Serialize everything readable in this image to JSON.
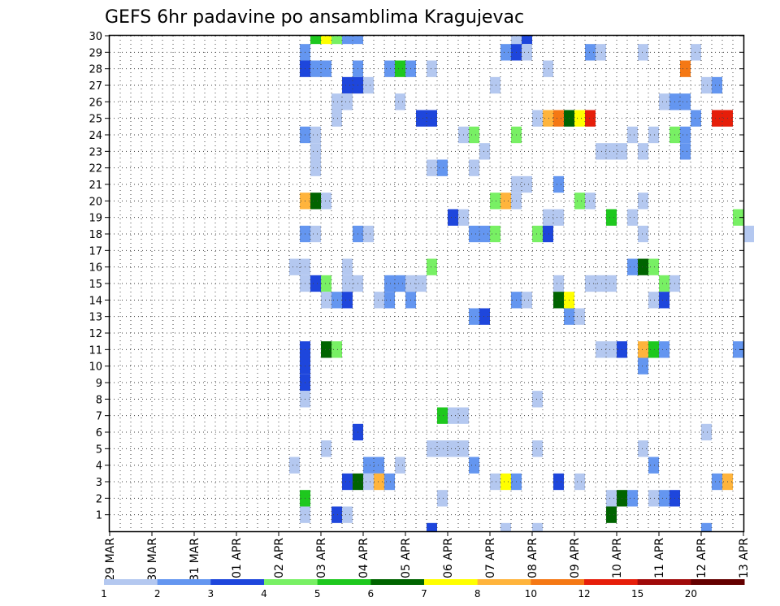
{
  "chart_data": {
    "type": "heatmap",
    "title": "GEFS 6hr padavine po ansamblima Kragujevac",
    "xlabel": "",
    "ylabel": "",
    "x_tick_labels": [
      "29 MAR",
      "30 MAR",
      "31 MAR",
      "01 APR",
      "02 APR",
      "03 APR",
      "04 APR",
      "05 APR",
      "06 APR",
      "07 APR",
      "08 APR",
      "09 APR",
      "10 APR",
      "11 APR",
      "12 APR",
      "13 APR"
    ],
    "y_tick_labels": [
      "1",
      "2",
      "3",
      "4",
      "5",
      "6",
      "7",
      "8",
      "9",
      "10",
      "11",
      "12",
      "13",
      "14",
      "15",
      "16",
      "17",
      "18",
      "19",
      "20",
      "21",
      "22",
      "23",
      "24",
      "25",
      "26",
      "27",
      "28",
      "29",
      "30"
    ],
    "x_range_steps": [
      0,
      60
    ],
    "y_range_members": [
      0,
      30
    ],
    "grid": true,
    "legend_position": "bottom",
    "color_scale": {
      "labels": [
        "1",
        "2",
        "3",
        "4",
        "5",
        "6",
        "7",
        "8",
        "10",
        "12",
        "15",
        "20"
      ],
      "colors": [
        "#b4c8f0",
        "#6496f0",
        "#1e46dc",
        "#78f064",
        "#1ec81e",
        "#006400",
        "#ffff00",
        "#ffb43c",
        "#f57814",
        "#e61e0a",
        "#a00a0a",
        "#640000"
      ]
    },
    "cells": [
      [
        30,
        19,
        5
      ],
      [
        30,
        20,
        7
      ],
      [
        30,
        21,
        4
      ],
      [
        30,
        22,
        2
      ],
      [
        30,
        23,
        2
      ],
      [
        30,
        38,
        1
      ],
      [
        30,
        39,
        3
      ],
      [
        29,
        18,
        2
      ],
      [
        29,
        37,
        2
      ],
      [
        29,
        38,
        3
      ],
      [
        29,
        39,
        1
      ],
      [
        29,
        45,
        2
      ],
      [
        29,
        46,
        1
      ],
      [
        29,
        50,
        1
      ],
      [
        29,
        55,
        1
      ],
      [
        28,
        18,
        3
      ],
      [
        28,
        19,
        2
      ],
      [
        28,
        20,
        2
      ],
      [
        28,
        23,
        2
      ],
      [
        28,
        26,
        2
      ],
      [
        28,
        27,
        5
      ],
      [
        28,
        28,
        2
      ],
      [
        28,
        30,
        1
      ],
      [
        28,
        41,
        1
      ],
      [
        28,
        54,
        9
      ],
      [
        27,
        22,
        3
      ],
      [
        27,
        23,
        3
      ],
      [
        27,
        24,
        1
      ],
      [
        27,
        36,
        1
      ],
      [
        27,
        56,
        1
      ],
      [
        27,
        57,
        2
      ],
      [
        26,
        21,
        1
      ],
      [
        26,
        22,
        1
      ],
      [
        26,
        27,
        1
      ],
      [
        26,
        52,
        1
      ],
      [
        26,
        53,
        2
      ],
      [
        26,
        54,
        2
      ],
      [
        25,
        21,
        1
      ],
      [
        25,
        29,
        3
      ],
      [
        25,
        30,
        3
      ],
      [
        25,
        40,
        1
      ],
      [
        25,
        41,
        8
      ],
      [
        25,
        42,
        9
      ],
      [
        25,
        43,
        6
      ],
      [
        25,
        44,
        7
      ],
      [
        25,
        45,
        10
      ],
      [
        25,
        55,
        2
      ],
      [
        25,
        57,
        10
      ],
      [
        25,
        58,
        10
      ],
      [
        24,
        18,
        2
      ],
      [
        24,
        19,
        1
      ],
      [
        24,
        33,
        1
      ],
      [
        24,
        34,
        4
      ],
      [
        24,
        38,
        4
      ],
      [
        24,
        49,
        1
      ],
      [
        24,
        51,
        1
      ],
      [
        24,
        53,
        4
      ],
      [
        24,
        54,
        2
      ],
      [
        23,
        19,
        1
      ],
      [
        23,
        35,
        1
      ],
      [
        23,
        46,
        1
      ],
      [
        23,
        47,
        1
      ],
      [
        23,
        48,
        1
      ],
      [
        23,
        50,
        1
      ],
      [
        23,
        54,
        2
      ],
      [
        22,
        19,
        1
      ],
      [
        22,
        30,
        1
      ],
      [
        22,
        31,
        2
      ],
      [
        22,
        34,
        1
      ],
      [
        21,
        38,
        1
      ],
      [
        21,
        39,
        1
      ],
      [
        21,
        42,
        2
      ],
      [
        20,
        18,
        8
      ],
      [
        20,
        19,
        6
      ],
      [
        20,
        20,
        1
      ],
      [
        20,
        36,
        4
      ],
      [
        20,
        37,
        8
      ],
      [
        20,
        38,
        1
      ],
      [
        20,
        44,
        4
      ],
      [
        20,
        45,
        1
      ],
      [
        20,
        50,
        1
      ],
      [
        19,
        32,
        3
      ],
      [
        19,
        33,
        1
      ],
      [
        19,
        41,
        1
      ],
      [
        19,
        42,
        1
      ],
      [
        19,
        47,
        5
      ],
      [
        19,
        49,
        1
      ],
      [
        19,
        59,
        4
      ],
      [
        18,
        18,
        2
      ],
      [
        18,
        19,
        1
      ],
      [
        18,
        23,
        2
      ],
      [
        18,
        24,
        1
      ],
      [
        18,
        34,
        2
      ],
      [
        18,
        35,
        2
      ],
      [
        18,
        36,
        4
      ],
      [
        18,
        40,
        4
      ],
      [
        18,
        41,
        3
      ],
      [
        18,
        50,
        1
      ],
      [
        18,
        60,
        1
      ],
      [
        16,
        17,
        1
      ],
      [
        16,
        18,
        1
      ],
      [
        16,
        22,
        1
      ],
      [
        16,
        30,
        4
      ],
      [
        16,
        49,
        2
      ],
      [
        16,
        50,
        6
      ],
      [
        16,
        51,
        4
      ],
      [
        15,
        18,
        1
      ],
      [
        15,
        19,
        3
      ],
      [
        15,
        20,
        4
      ],
      [
        15,
        22,
        1
      ],
      [
        15,
        23,
        1
      ],
      [
        15,
        26,
        2
      ],
      [
        15,
        27,
        2
      ],
      [
        15,
        28,
        1
      ],
      [
        15,
        29,
        1
      ],
      [
        15,
        42,
        1
      ],
      [
        15,
        45,
        1
      ],
      [
        15,
        46,
        1
      ],
      [
        15,
        47,
        1
      ],
      [
        15,
        52,
        4
      ],
      [
        15,
        53,
        1
      ],
      [
        14,
        20,
        1
      ],
      [
        14,
        21,
        2
      ],
      [
        14,
        22,
        3
      ],
      [
        14,
        25,
        1
      ],
      [
        14,
        26,
        2
      ],
      [
        14,
        28,
        2
      ],
      [
        14,
        38,
        2
      ],
      [
        14,
        39,
        1
      ],
      [
        14,
        42,
        6
      ],
      [
        14,
        43,
        7
      ],
      [
        14,
        51,
        1
      ],
      [
        14,
        52,
        3
      ],
      [
        13,
        34,
        2
      ],
      [
        13,
        35,
        3
      ],
      [
        13,
        43,
        2
      ],
      [
        13,
        44,
        1
      ],
      [
        11,
        18,
        3
      ],
      [
        11,
        20,
        6
      ],
      [
        11,
        21,
        4
      ],
      [
        11,
        46,
        1
      ],
      [
        11,
        47,
        1
      ],
      [
        11,
        48,
        3
      ],
      [
        11,
        50,
        8
      ],
      [
        11,
        51,
        5
      ],
      [
        11,
        52,
        2
      ],
      [
        11,
        59,
        2
      ],
      [
        10,
        18,
        3
      ],
      [
        10,
        50,
        2
      ],
      [
        9,
        18,
        3
      ],
      [
        8,
        18,
        1
      ],
      [
        8,
        40,
        1
      ],
      [
        7,
        31,
        5
      ],
      [
        7,
        32,
        1
      ],
      [
        7,
        33,
        1
      ],
      [
        6,
        23,
        3
      ],
      [
        6,
        56,
        1
      ],
      [
        5,
        20,
        1
      ],
      [
        5,
        30,
        1
      ],
      [
        5,
        31,
        1
      ],
      [
        5,
        32,
        1
      ],
      [
        5,
        33,
        1
      ],
      [
        5,
        40,
        1
      ],
      [
        5,
        50,
        1
      ],
      [
        4,
        17,
        1
      ],
      [
        4,
        24,
        2
      ],
      [
        4,
        25,
        2
      ],
      [
        4,
        27,
        1
      ],
      [
        4,
        34,
        2
      ],
      [
        4,
        51,
        2
      ],
      [
        3,
        22,
        3
      ],
      [
        3,
        23,
        6
      ],
      [
        3,
        24,
        1
      ],
      [
        3,
        25,
        8
      ],
      [
        3,
        26,
        2
      ],
      [
        3,
        36,
        1
      ],
      [
        3,
        37,
        7
      ],
      [
        3,
        38,
        2
      ],
      [
        3,
        42,
        3
      ],
      [
        3,
        44,
        1
      ],
      [
        3,
        57,
        2
      ],
      [
        3,
        58,
        8
      ],
      [
        2,
        18,
        5
      ],
      [
        2,
        31,
        1
      ],
      [
        2,
        47,
        1
      ],
      [
        2,
        48,
        6
      ],
      [
        2,
        49,
        2
      ],
      [
        2,
        51,
        1
      ],
      [
        2,
        52,
        2
      ],
      [
        2,
        53,
        3
      ],
      [
        1,
        18,
        1
      ],
      [
        1,
        21,
        3
      ],
      [
        1,
        22,
        1
      ],
      [
        1,
        47,
        6
      ],
      [
        0,
        30,
        3
      ],
      [
        0,
        37,
        1
      ],
      [
        0,
        40,
        1
      ],
      [
        0,
        56,
        2
      ]
    ]
  }
}
